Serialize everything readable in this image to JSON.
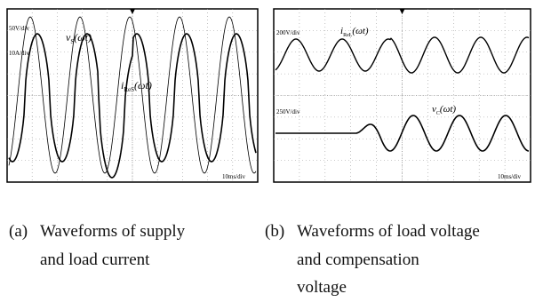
{
  "panels": [
    {
      "scales": [
        "50V/div",
        "10A/div"
      ],
      "time_scale": "10ms/div",
      "labels": [
        {
          "main": "v",
          "sub": "S",
          "arg": "(ωt)"
        },
        {
          "main": "i",
          "sub": "ReS",
          "arg": "(ωt)"
        }
      ]
    },
    {
      "scales": [
        "200V/div",
        "250V/div"
      ],
      "time_scale": "10ms/div",
      "labels": [
        {
          "main": "i",
          "sub": "ReL",
          "arg": "(ωt)"
        },
        {
          "main": "v",
          "sub": "C",
          "arg": "(ωt)"
        }
      ]
    }
  ],
  "captions": [
    {
      "tag": "(a)",
      "lines": [
        "Waveforms of supply",
        "and load current"
      ]
    },
    {
      "tag": "(b)",
      "lines": [
        "Waveforms of load voltage",
        "and compensation",
        "voltage"
      ]
    }
  ]
}
